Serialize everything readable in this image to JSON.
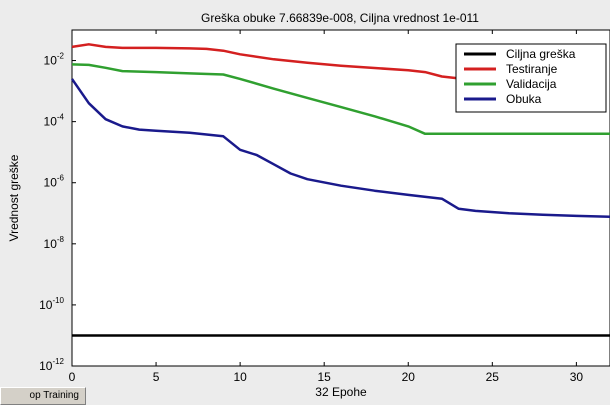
{
  "stop_button": {
    "label": "op Training"
  },
  "chart_data": {
    "type": "line",
    "title": "Greška obuke 7.66839e-008, Ciljna vrednost 1e-011",
    "xlabel": "32 Epohe",
    "ylabel": "Vrednost greške",
    "xlim": [
      0,
      32
    ],
    "ylim": [
      1e-12,
      0.1
    ],
    "yscale": "log",
    "x_ticks": [
      0,
      5,
      10,
      15,
      20,
      25,
      30
    ],
    "y_ticks": [
      {
        "value": 1e-12,
        "base": "10",
        "exp": "-12"
      },
      {
        "value": 1e-10,
        "base": "10",
        "exp": "-10"
      },
      {
        "value": 1e-08,
        "base": "10",
        "exp": "-8"
      },
      {
        "value": 1e-06,
        "base": "10",
        "exp": "-6"
      },
      {
        "value": 0.0001,
        "base": "10",
        "exp": "-4"
      },
      {
        "value": 0.01,
        "base": "10",
        "exp": "-2"
      }
    ],
    "legend_position": "top-right",
    "series": [
      {
        "name": "Ciljna greška",
        "color": "#000000",
        "points": [
          [
            0,
            1e-11
          ],
          [
            32,
            1e-11
          ]
        ]
      },
      {
        "name": "Testiranje",
        "color": "#d42020",
        "points": [
          [
            0,
            0.028
          ],
          [
            1,
            0.034
          ],
          [
            2,
            0.028
          ],
          [
            3,
            0.026
          ],
          [
            5,
            0.026
          ],
          [
            7,
            0.025
          ],
          [
            8,
            0.024
          ],
          [
            9,
            0.021
          ],
          [
            10,
            0.016
          ],
          [
            12,
            0.011
          ],
          [
            14,
            0.0085
          ],
          [
            16,
            0.0068
          ],
          [
            18,
            0.0057
          ],
          [
            20,
            0.0048
          ],
          [
            21,
            0.0042
          ],
          [
            22,
            0.003
          ],
          [
            23,
            0.0026
          ],
          [
            24,
            0.0026
          ]
        ]
      },
      {
        "name": "Validacija",
        "color": "#30a030",
        "points": [
          [
            0,
            0.0075
          ],
          [
            1,
            0.0072
          ],
          [
            2,
            0.0058
          ],
          [
            3,
            0.0045
          ],
          [
            5,
            0.0042
          ],
          [
            7,
            0.0038
          ],
          [
            9,
            0.0035
          ],
          [
            10,
            0.0025
          ],
          [
            12,
            0.0012
          ],
          [
            14,
            0.0006
          ],
          [
            16,
            0.0003
          ],
          [
            18,
            0.00015
          ],
          [
            20,
            7e-05
          ],
          [
            21,
            4e-05
          ],
          [
            23,
            4e-05
          ],
          [
            25,
            4e-05
          ],
          [
            28,
            4e-05
          ],
          [
            32,
            4e-05
          ]
        ]
      },
      {
        "name": "Obuka",
        "color": "#1a1a8c",
        "points": [
          [
            0,
            0.0025
          ],
          [
            1,
            0.0004
          ],
          [
            2,
            0.00012
          ],
          [
            3,
            7e-05
          ],
          [
            4,
            5.5e-05
          ],
          [
            5,
            5e-05
          ],
          [
            7,
            4.3e-05
          ],
          [
            9,
            3.3e-05
          ],
          [
            10,
            1.2e-05
          ],
          [
            11,
            8e-06
          ],
          [
            12,
            4e-06
          ],
          [
            13,
            2e-06
          ],
          [
            14,
            1.3e-06
          ],
          [
            16,
            8e-07
          ],
          [
            18,
            5.5e-07
          ],
          [
            20,
            4e-07
          ],
          [
            22,
            3e-07
          ],
          [
            23,
            1.4e-07
          ],
          [
            24,
            1.2e-07
          ],
          [
            26,
            1e-07
          ],
          [
            28,
            9e-08
          ],
          [
            30,
            8.2e-08
          ],
          [
            32,
            7.7e-08
          ]
        ]
      }
    ]
  }
}
